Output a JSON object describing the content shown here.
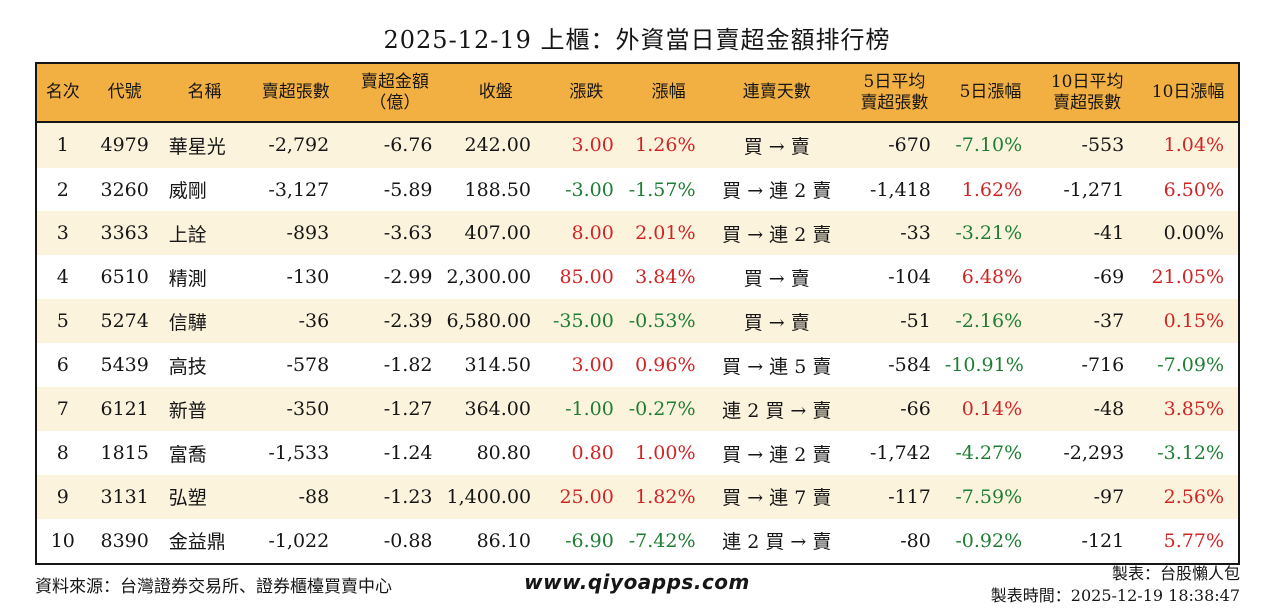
{
  "header": {
    "title": "2025-12-19 上櫃：外資當日賣超金額排行榜"
  },
  "colors": {
    "up": "#d02525",
    "down": "#1e7e34",
    "flat": "#161616",
    "header_bg": "#f2b042",
    "row_alt_bg": "#fcf3dd",
    "border": "#161616"
  },
  "chart_data": {
    "type": "table",
    "title": "2025-12-19 上櫃：外資當日賣超金額排行榜",
    "columns": [
      {
        "key": "rank",
        "label": "名次",
        "align": "center",
        "width": "4.3%"
      },
      {
        "key": "code",
        "label": "代號",
        "align": "center",
        "width": "6.0%"
      },
      {
        "key": "name",
        "label": "名稱",
        "align": "left",
        "width": "7.3%"
      },
      {
        "key": "sell_volume",
        "label": "賣超張數",
        "align": "right",
        "width": "7.9%"
      },
      {
        "key": "sell_amount",
        "label": "賣超金額\n（億）",
        "align": "right",
        "width": "8.6%"
      },
      {
        "key": "close",
        "label": "收盤",
        "align": "right",
        "width": "8.2%"
      },
      {
        "key": "change",
        "label": "漲跌",
        "align": "right",
        "width": "6.9%",
        "trend_from": "change_trend"
      },
      {
        "key": "change_pct",
        "label": "漲幅",
        "align": "right",
        "width": "6.8%",
        "trend_from": "change_trend"
      },
      {
        "key": "streak",
        "label": "連賣天數",
        "align": "center",
        "width": "11.2%"
      },
      {
        "key": "avg5_volume",
        "label": "5日平均\n賣超張數",
        "align": "right",
        "width": "8.4%"
      },
      {
        "key": "pct5",
        "label": "5日漲幅",
        "align": "right",
        "width": "7.6%",
        "trend_from": "pct5_trend"
      },
      {
        "key": "avg10_volume",
        "label": "10日平均\n賣超張數",
        "align": "right",
        "width": "8.5%"
      },
      {
        "key": "pct10",
        "label": "10日漲幅",
        "align": "right",
        "width": "8.3%",
        "trend_from": "pct10_trend"
      }
    ],
    "rows": [
      {
        "rank": "1",
        "code": "4979",
        "name": "華星光",
        "sell_volume": "-2,792",
        "sell_amount": "-6.76",
        "close": "242.00",
        "change": "3.00",
        "change_pct": "1.26%",
        "change_trend": "up",
        "streak": "買 → 賣",
        "avg5_volume": "-670",
        "pct5": "-7.10%",
        "pct5_trend": "down",
        "avg10_volume": "-553",
        "pct10": "1.04%",
        "pct10_trend": "up"
      },
      {
        "rank": "2",
        "code": "3260",
        "name": "威剛",
        "sell_volume": "-3,127",
        "sell_amount": "-5.89",
        "close": "188.50",
        "change": "-3.00",
        "change_pct": "-1.57%",
        "change_trend": "down",
        "streak": "買 → 連 2 賣",
        "avg5_volume": "-1,418",
        "pct5": "1.62%",
        "pct5_trend": "up",
        "avg10_volume": "-1,271",
        "pct10": "6.50%",
        "pct10_trend": "up"
      },
      {
        "rank": "3",
        "code": "3363",
        "name": "上詮",
        "sell_volume": "-893",
        "sell_amount": "-3.63",
        "close": "407.00",
        "change": "8.00",
        "change_pct": "2.01%",
        "change_trend": "up",
        "streak": "買 → 連 2 賣",
        "avg5_volume": "-33",
        "pct5": "-3.21%",
        "pct5_trend": "down",
        "avg10_volume": "-41",
        "pct10": "0.00%",
        "pct10_trend": "flat"
      },
      {
        "rank": "4",
        "code": "6510",
        "name": "精測",
        "sell_volume": "-130",
        "sell_amount": "-2.99",
        "close": "2,300.00",
        "change": "85.00",
        "change_pct": "3.84%",
        "change_trend": "up",
        "streak": "買 → 賣",
        "avg5_volume": "-104",
        "pct5": "6.48%",
        "pct5_trend": "up",
        "avg10_volume": "-69",
        "pct10": "21.05%",
        "pct10_trend": "up"
      },
      {
        "rank": "5",
        "code": "5274",
        "name": "信驊",
        "sell_volume": "-36",
        "sell_amount": "-2.39",
        "close": "6,580.00",
        "change": "-35.00",
        "change_pct": "-0.53%",
        "change_trend": "down",
        "streak": "買 → 賣",
        "avg5_volume": "-51",
        "pct5": "-2.16%",
        "pct5_trend": "down",
        "avg10_volume": "-37",
        "pct10": "0.15%",
        "pct10_trend": "up"
      },
      {
        "rank": "6",
        "code": "5439",
        "name": "高技",
        "sell_volume": "-578",
        "sell_amount": "-1.82",
        "close": "314.50",
        "change": "3.00",
        "change_pct": "0.96%",
        "change_trend": "up",
        "streak": "買 → 連 5 賣",
        "avg5_volume": "-584",
        "pct5": "-10.91%",
        "pct5_trend": "down",
        "avg10_volume": "-716",
        "pct10": "-7.09%",
        "pct10_trend": "down"
      },
      {
        "rank": "7",
        "code": "6121",
        "name": "新普",
        "sell_volume": "-350",
        "sell_amount": "-1.27",
        "close": "364.00",
        "change": "-1.00",
        "change_pct": "-0.27%",
        "change_trend": "down",
        "streak": "連 2 買 → 賣",
        "avg5_volume": "-66",
        "pct5": "0.14%",
        "pct5_trend": "up",
        "avg10_volume": "-48",
        "pct10": "3.85%",
        "pct10_trend": "up"
      },
      {
        "rank": "8",
        "code": "1815",
        "name": "富喬",
        "sell_volume": "-1,533",
        "sell_amount": "-1.24",
        "close": "80.80",
        "change": "0.80",
        "change_pct": "1.00%",
        "change_trend": "up",
        "streak": "買 → 連 2 賣",
        "avg5_volume": "-1,742",
        "pct5": "-4.27%",
        "pct5_trend": "down",
        "avg10_volume": "-2,293",
        "pct10": "-3.12%",
        "pct10_trend": "down"
      },
      {
        "rank": "9",
        "code": "3131",
        "name": "弘塑",
        "sell_volume": "-88",
        "sell_amount": "-1.23",
        "close": "1,400.00",
        "change": "25.00",
        "change_pct": "1.82%",
        "change_trend": "up",
        "streak": "買 → 連 7 賣",
        "avg5_volume": "-117",
        "pct5": "-7.59%",
        "pct5_trend": "down",
        "avg10_volume": "-97",
        "pct10": "2.56%",
        "pct10_trend": "up"
      },
      {
        "rank": "10",
        "code": "8390",
        "name": "金益鼎",
        "sell_volume": "-1,022",
        "sell_amount": "-0.88",
        "close": "86.10",
        "change": "-6.90",
        "change_pct": "-7.42%",
        "change_trend": "down",
        "streak": "連 2 買 → 賣",
        "avg5_volume": "-80",
        "pct5": "-0.92%",
        "pct5_trend": "down",
        "avg10_volume": "-121",
        "pct10": "5.77%",
        "pct10_trend": "up"
      }
    ]
  },
  "footer": {
    "source": "資料來源：台灣證券交易所、證券櫃檯買賣中心",
    "website": "www.qiyoapps.com",
    "maker": "製表：台股懶人包",
    "made_at": "製表時間：2025-12-19 18:38:47"
  }
}
